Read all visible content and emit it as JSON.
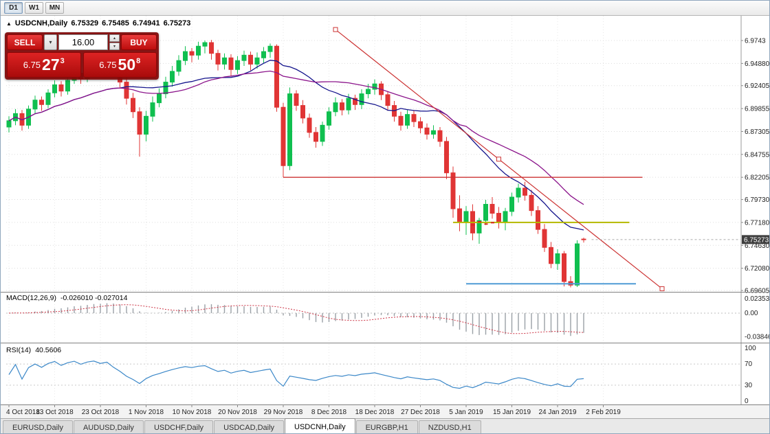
{
  "icons": {
    "triangle_up": "▲",
    "chevron_down": "▾",
    "spinner_up": "▴",
    "spinner_down": "▾"
  },
  "toolbar": {
    "timeframes": [
      {
        "label": "D1",
        "active": true
      },
      {
        "label": "W1",
        "active": false
      },
      {
        "label": "MN",
        "active": false
      }
    ]
  },
  "chart": {
    "symbol_title": "USDCNH,Daily",
    "ohlc": {
      "open": "6.75329",
      "high": "6.75485",
      "low": "6.74941",
      "close": "6.75273"
    },
    "current_price": "6.75273",
    "price_axis_labels": [
      "6.9743",
      "6.94880",
      "6.92405",
      "6.89855",
      "6.87305",
      "6.84755",
      "6.82205",
      "6.79730",
      "6.77180",
      "6.74630",
      "6.72080",
      "6.69605"
    ]
  },
  "trade_panel": {
    "sell_label": "SELL",
    "buy_label": "BUY",
    "lot_value": "16.00",
    "sell_price": {
      "big": "6.75",
      "pips": "27",
      "sup": "3"
    },
    "buy_price": {
      "big": "6.75",
      "pips": "50",
      "sup": "8"
    }
  },
  "macd_panel": {
    "name": "MACD(12,26,9)",
    "values": "-0.026010 -0.027014",
    "axis_labels": [
      {
        "text": "0.023534",
        "value": 0.023534
      },
      {
        "text": "0.00",
        "value": 0
      },
      {
        "text": "-0.038466",
        "value": -0.038466
      }
    ]
  },
  "rsi_panel": {
    "name": "RSI(14)",
    "value": "40.5606",
    "levels": [
      70,
      30
    ],
    "axis_labels": [
      {
        "text": "100",
        "value": 100
      },
      {
        "text": "70",
        "value": 70
      },
      {
        "text": "30",
        "value": 30
      },
      {
        "text": "0",
        "value": 0
      }
    ]
  },
  "date_axis": [
    {
      "label": "4 Oct 2018",
      "bar": 0
    },
    {
      "label": "13 Oct 2018",
      "bar": 7
    },
    {
      "label": "23 Oct 2018",
      "bar": 14
    },
    {
      "label": "1 Nov 2018",
      "bar": 21
    },
    {
      "label": "10 Nov 2018",
      "bar": 28
    },
    {
      "label": "20 Nov 2018",
      "bar": 35
    },
    {
      "label": "29 Nov 2018",
      "bar": 42
    },
    {
      "label": "8 Dec 2018",
      "bar": 49
    },
    {
      "label": "18 Dec 2018",
      "bar": 56
    },
    {
      "label": "27 Dec 2018",
      "bar": 63
    },
    {
      "label": "5 Jan 2019",
      "bar": 70
    },
    {
      "label": "15 Jan 2019",
      "bar": 77
    },
    {
      "label": "24 Jan 2019",
      "bar": 84
    },
    {
      "label": "2 Feb 2019",
      "bar": 91
    }
  ],
  "tabs": [
    {
      "label": "EURUSD,Daily",
      "active": false
    },
    {
      "label": "AUDUSD,Daily",
      "active": false
    },
    {
      "label": "USDCHF,Daily",
      "active": false
    },
    {
      "label": "USDCAD,Daily",
      "active": false
    },
    {
      "label": "USDCNH,Daily",
      "active": true
    },
    {
      "label": "EURGBP,H1",
      "active": false
    },
    {
      "label": "NZDUSD,H1",
      "active": false
    }
  ],
  "chart_data": {
    "type": "candlestick",
    "symbol": "USDCNH",
    "timeframe": "Daily",
    "colors": {
      "bull": "#0fbf4f",
      "bear": "#e03535",
      "grid": "#dcdcdc",
      "ma_fast": "#14148c",
      "ma_slow": "#8b148b",
      "trendline": "#cc3333",
      "hline_red": "#cc3333",
      "hline_yellow": "#b4b800",
      "hline_blue": "#4f9bd5",
      "macd_histogram": "#9aa0a6",
      "macd_signal": "#cc3344",
      "rsi_line": "#3a87c8",
      "bid_line": "#aaaaaa",
      "badge_bg": "#3f3f3f"
    },
    "candles": [
      [
        6.878,
        6.89,
        6.872,
        6.885
      ],
      [
        6.885,
        6.898,
        6.88,
        6.893
      ],
      [
        6.893,
        6.897,
        6.874,
        6.88
      ],
      [
        6.88,
        6.902,
        6.876,
        6.898
      ],
      [
        6.898,
        6.913,
        6.893,
        6.908
      ],
      [
        6.908,
        6.912,
        6.896,
        6.903
      ],
      [
        6.903,
        6.92,
        6.899,
        6.916
      ],
      [
        6.916,
        6.93,
        6.911,
        6.925
      ],
      [
        6.925,
        6.929,
        6.912,
        6.918
      ],
      [
        6.918,
        6.935,
        6.914,
        6.93
      ],
      [
        6.93,
        6.943,
        6.926,
        6.938
      ],
      [
        6.938,
        6.942,
        6.926,
        6.932
      ],
      [
        6.932,
        6.949,
        6.928,
        6.944
      ],
      [
        6.944,
        6.956,
        6.94,
        6.95
      ],
      [
        6.95,
        6.954,
        6.938,
        6.945
      ],
      [
        6.945,
        6.958,
        6.941,
        6.952
      ],
      [
        6.952,
        6.956,
        6.934,
        6.94
      ],
      [
        6.94,
        6.946,
        6.922,
        6.928
      ],
      [
        6.928,
        6.934,
        6.903,
        6.91
      ],
      [
        6.91,
        6.916,
        6.888,
        6.895
      ],
      [
        6.895,
        6.9,
        6.845,
        6.87
      ],
      [
        6.87,
        6.896,
        6.862,
        6.89
      ],
      [
        6.89,
        6.912,
        6.884,
        6.905
      ],
      [
        6.905,
        6.921,
        6.9,
        6.915
      ],
      [
        6.915,
        6.934,
        6.91,
        6.928
      ],
      [
        6.928,
        6.946,
        6.923,
        6.94
      ],
      [
        6.94,
        6.958,
        6.935,
        6.952
      ],
      [
        6.952,
        6.968,
        6.947,
        6.962
      ],
      [
        6.962,
        6.966,
        6.95,
        6.958
      ],
      [
        6.958,
        6.973,
        6.953,
        6.968
      ],
      [
        6.968,
        6.9743,
        6.96,
        6.972
      ],
      [
        6.972,
        6.975,
        6.953,
        6.96
      ],
      [
        6.96,
        6.964,
        6.941,
        6.948
      ],
      [
        6.948,
        6.96,
        6.942,
        6.955
      ],
      [
        6.955,
        6.959,
        6.935,
        6.942
      ],
      [
        6.942,
        6.957,
        6.937,
        6.952
      ],
      [
        6.952,
        6.963,
        6.946,
        6.958
      ],
      [
        6.958,
        6.962,
        6.941,
        6.948
      ],
      [
        6.948,
        6.961,
        6.943,
        6.955
      ],
      [
        6.955,
        6.967,
        6.949,
        6.962
      ],
      [
        6.962,
        6.971,
        6.955,
        6.968
      ],
      [
        6.968,
        6.97,
        6.895,
        6.9
      ],
      [
        6.9,
        6.905,
        6.822,
        6.835
      ],
      [
        6.835,
        6.922,
        6.83,
        6.915
      ],
      [
        6.915,
        6.919,
        6.896,
        6.902
      ],
      [
        6.902,
        6.908,
        6.882,
        6.888
      ],
      [
        6.888,
        6.893,
        6.866,
        6.872
      ],
      [
        6.872,
        6.878,
        6.855,
        6.862
      ],
      [
        6.862,
        6.884,
        6.857,
        6.88
      ],
      [
        6.88,
        6.9,
        6.875,
        6.895
      ],
      [
        6.895,
        6.911,
        6.89,
        6.905
      ],
      [
        6.905,
        6.909,
        6.891,
        6.897
      ],
      [
        6.897,
        6.915,
        6.892,
        6.91
      ],
      [
        6.91,
        6.914,
        6.897,
        6.903
      ],
      [
        6.903,
        6.92,
        6.898,
        6.915
      ],
      [
        6.915,
        6.926,
        6.91,
        6.92
      ],
      [
        6.92,
        6.931,
        6.914,
        6.926
      ],
      [
        6.926,
        6.929,
        6.908,
        6.914
      ],
      [
        6.914,
        6.918,
        6.896,
        6.902
      ],
      [
        6.902,
        6.907,
        6.884,
        6.89
      ],
      [
        6.89,
        6.895,
        6.874,
        6.88
      ],
      [
        6.88,
        6.897,
        6.876,
        6.892
      ],
      [
        6.892,
        6.896,
        6.878,
        6.884
      ],
      [
        6.884,
        6.889,
        6.871,
        6.877
      ],
      [
        6.877,
        6.882,
        6.864,
        6.87
      ],
      [
        6.87,
        6.88,
        6.865,
        6.874
      ],
      [
        6.874,
        6.878,
        6.856,
        6.862
      ],
      [
        6.862,
        6.867,
        6.82,
        6.827
      ],
      [
        6.827,
        6.834,
        6.777,
        6.787
      ],
      [
        6.787,
        6.802,
        6.762,
        6.772
      ],
      [
        6.772,
        6.79,
        6.758,
        6.784
      ],
      [
        6.784,
        6.792,
        6.752,
        6.76
      ],
      [
        6.76,
        6.777,
        6.748,
        6.774
      ],
      [
        6.774,
        6.797,
        6.769,
        6.792
      ],
      [
        6.792,
        6.8,
        6.776,
        6.782
      ],
      [
        6.782,
        6.789,
        6.765,
        6.772
      ],
      [
        6.772,
        6.788,
        6.763,
        6.784
      ],
      [
        6.784,
        6.805,
        6.779,
        6.8
      ],
      [
        6.8,
        6.815,
        6.794,
        6.81
      ],
      [
        6.81,
        6.817,
        6.796,
        6.802
      ],
      [
        6.802,
        6.808,
        6.779,
        6.785
      ],
      [
        6.785,
        6.79,
        6.759,
        6.764
      ],
      [
        6.764,
        6.77,
        6.739,
        6.744
      ],
      [
        6.744,
        6.75,
        6.721,
        6.726
      ],
      [
        6.726,
        6.742,
        6.719,
        6.737
      ],
      [
        6.737,
        6.74,
        6.7005,
        6.706
      ],
      [
        6.706,
        6.712,
        6.6995,
        6.702
      ],
      [
        6.702,
        6.752,
        6.7,
        6.748
      ],
      [
        6.75329,
        6.75485,
        6.74941,
        6.75273
      ]
    ],
    "overlays": {
      "moving_averages": [
        {
          "period": 18,
          "color": "#14148c"
        },
        {
          "period": 28,
          "color": "#8b148b"
        }
      ],
      "trendline": {
        "color": "#cc3333",
        "from": {
          "bar": 50,
          "price": 6.9865
        },
        "to": {
          "bar": 100,
          "price": 6.698
        }
      },
      "hlines": [
        {
          "color": "#cc3333",
          "price": 6.82205,
          "from_bar": 42,
          "to_bar": 97,
          "width": 1.4
        },
        {
          "color": "#b4b800",
          "price": 6.7718,
          "from_bar": 68,
          "to_bar": 95,
          "width": 2
        },
        {
          "color": "#4f9bd5",
          "price": 6.7035,
          "from_bar": 70,
          "to_bar": 96,
          "width": 2
        }
      ],
      "trade_markers": [
        {
          "bar": 71,
          "price": 6.769
        },
        {
          "bar": 72,
          "price": 6.7725
        },
        {
          "bar": 73,
          "price": 6.77
        },
        {
          "bar": 74,
          "price": 6.7715
        }
      ]
    },
    "macd": {
      "fast": 12,
      "slow": 26,
      "signal": 9,
      "value": -0.02601,
      "signal_value": -0.027014,
      "range": {
        "max": 0.023534,
        "min": -0.038466
      }
    },
    "rsi": {
      "period": 14,
      "value": 40.5606,
      "range": [
        0,
        100
      ],
      "levels": [
        70,
        30
      ]
    }
  }
}
